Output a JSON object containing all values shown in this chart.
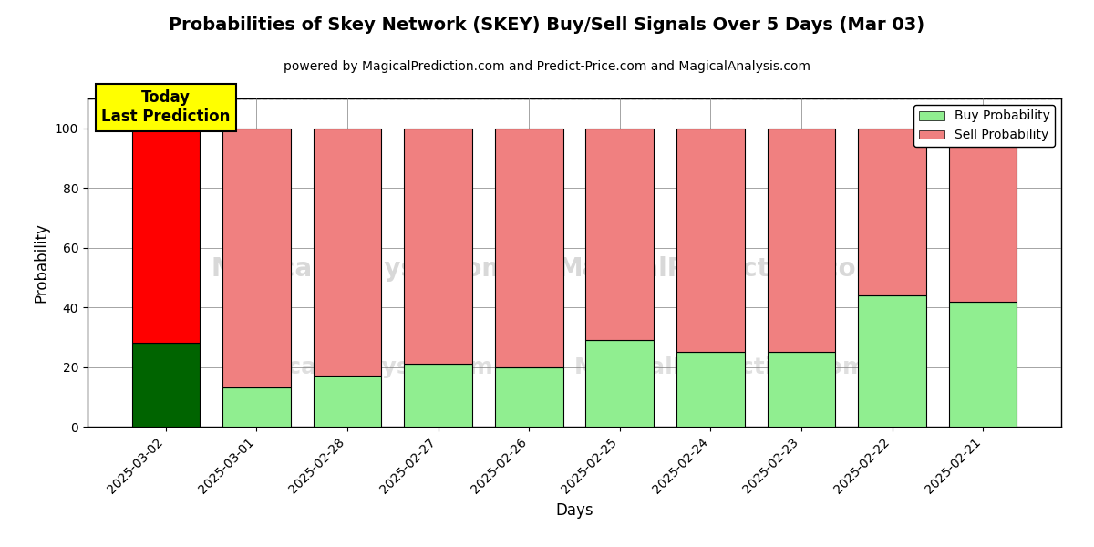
{
  "title": "Probabilities of Skey Network (SKEY) Buy/Sell Signals Over 5 Days (Mar 03)",
  "subtitle": "powered by MagicalPrediction.com and Predict-Price.com and MagicalAnalysis.com",
  "xlabel": "Days",
  "ylabel": "Probability",
  "categories": [
    "2025-03-02",
    "2025-03-01",
    "2025-02-28",
    "2025-02-27",
    "2025-02-26",
    "2025-02-25",
    "2025-02-24",
    "2025-02-23",
    "2025-02-22",
    "2025-02-21"
  ],
  "buy_values": [
    28,
    13,
    17,
    21,
    20,
    29,
    25,
    25,
    44,
    42
  ],
  "sell_values": [
    72,
    87,
    83,
    79,
    80,
    71,
    75,
    75,
    56,
    58
  ],
  "today_buy_color": "#006400",
  "today_sell_color": "#FF0000",
  "buy_color": "#90EE90",
  "sell_color": "#F08080",
  "today_label_bg": "#FFFF00",
  "today_label_text": "Today\nLast Prediction",
  "legend_buy": "Buy Probability",
  "legend_sell": "Sell Probability",
  "ylim": [
    0,
    110
  ],
  "dashed_line_y": 110,
  "watermark1": "MagicalAnalysis.com",
  "watermark2": "MagicalPrediction.com",
  "background_color": "#ffffff",
  "grid_color": "#808080",
  "title_fontsize": 14,
  "subtitle_fontsize": 10,
  "bar_width": 0.75
}
